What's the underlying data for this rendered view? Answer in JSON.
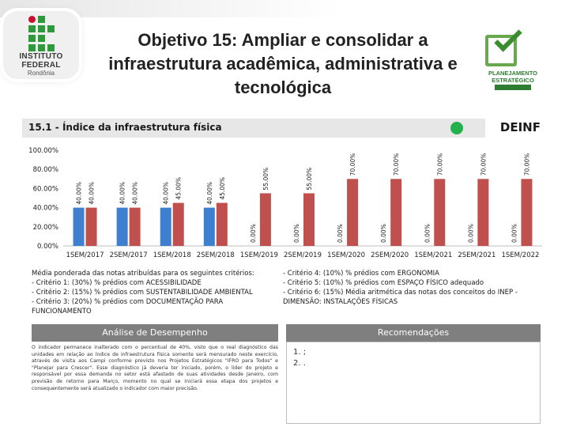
{
  "colors": {
    "bar_baseline": "#3f7fd0",
    "bar_target": "#c0504d",
    "header_bg": "#e7e7e7",
    "panel_head": "#7f7f7f",
    "status_dot": "#22b14c"
  },
  "logos": {
    "left_line1": "INSTITUTO",
    "left_line2": "FEDERAL",
    "left_line3": "Rondônia",
    "right_line1": "PLANEJAMENTO",
    "right_line2": "ESTRATÉGICO"
  },
  "page": {
    "title": "Objetivo 15: Ampliar e consolidar a infraestrutura acadêmica, administrativa e tecnológica"
  },
  "indicator": {
    "title": "15.1 - Índice da infraestrutura física",
    "unit": "DEINF",
    "status_icon": "green-circle-icon"
  },
  "chart_data": {
    "type": "bar",
    "categories": [
      "1SEM/2017",
      "2SEM/2017",
      "1SEM/2018",
      "2SEM/2018",
      "1SEM/2019",
      "2SEM/2019",
      "1SEM/2020",
      "2SEM/2020",
      "1SEM/2021",
      "2SEM/2021",
      "1SEM/2022"
    ],
    "series": [
      {
        "values": [
          40,
          40,
          40,
          40,
          0,
          0,
          0,
          0,
          0,
          0,
          0
        ],
        "labels": [
          "40.00%",
          "40.00%",
          "40.00%",
          "40.00%",
          "0.00%",
          "0.00%",
          "0.00%",
          "0.00%",
          "0.00%",
          "0.00%",
          "0.00%"
        ]
      },
      {
        "values": [
          40,
          40,
          45,
          45,
          55,
          55,
          70,
          70,
          70,
          70,
          70
        ],
        "labels": [
          "40.00%",
          "40.00%",
          "45.00%",
          "45.00%",
          "55.00%",
          "55.00%",
          "70.00%",
          "70.00%",
          "70.00%",
          "70.00%",
          "70.00%"
        ]
      }
    ],
    "ylim": [
      0,
      100
    ],
    "yticks": [
      "0.00%",
      "20.00%",
      "40.00%",
      "60.00%",
      "80.00%",
      "100.00%"
    ],
    "grid": false,
    "legend": "none"
  },
  "criteria": {
    "left": [
      "Média ponderada das notas atribuídas para os seguintes critérios:",
      "- Critério 1: (30%) % prédios com ACESSIBILIDADE",
      "- Critério 2: (15%) % prédios com SUSTENTABILIDADE AMBIENTAL",
      "- Critério 3: (20%) % prédios com DOCUMENTAÇÃO PARA FUNCIONAMENTO"
    ],
    "right": [
      "- Critério 4: (10%) % prédios com ERGONOMIA",
      "- Critério 5: (10%) % prédios com ESPAÇO FÍSICO adequado",
      "- Critério 6: (15%) Média aritmética das notas dos conceitos do INEP - DIMENSÃO: INSTALAÇÕES FÍSICAS"
    ]
  },
  "analysis": {
    "title": "Análise de Desempenho",
    "text": "O indicador permanece inalterado com o percentual de 40%, visto que o real diagnóstico das unidades em relação ao índice de infraestrutura física somente será mensurado neste exercício, através de visita aos Campi conforme previsto nos Projetos Estratégicos \"IFRO para Todos\" e \"Planejar para Crescer\". Esse diagnóstico já deveria ter iniciado, porém, o líder do projeto e responsável por essa demanda no setor está afastado de suas atividades desde Janeiro, com previsão de retorno para Março, momento no qual se iniciará essa etapa dos projetos e consequentemente será atualizado o indicador com maior precisão."
  },
  "recommendations": {
    "title": "Recomendações",
    "items": [
      "1.  ;",
      "2.  ."
    ]
  }
}
